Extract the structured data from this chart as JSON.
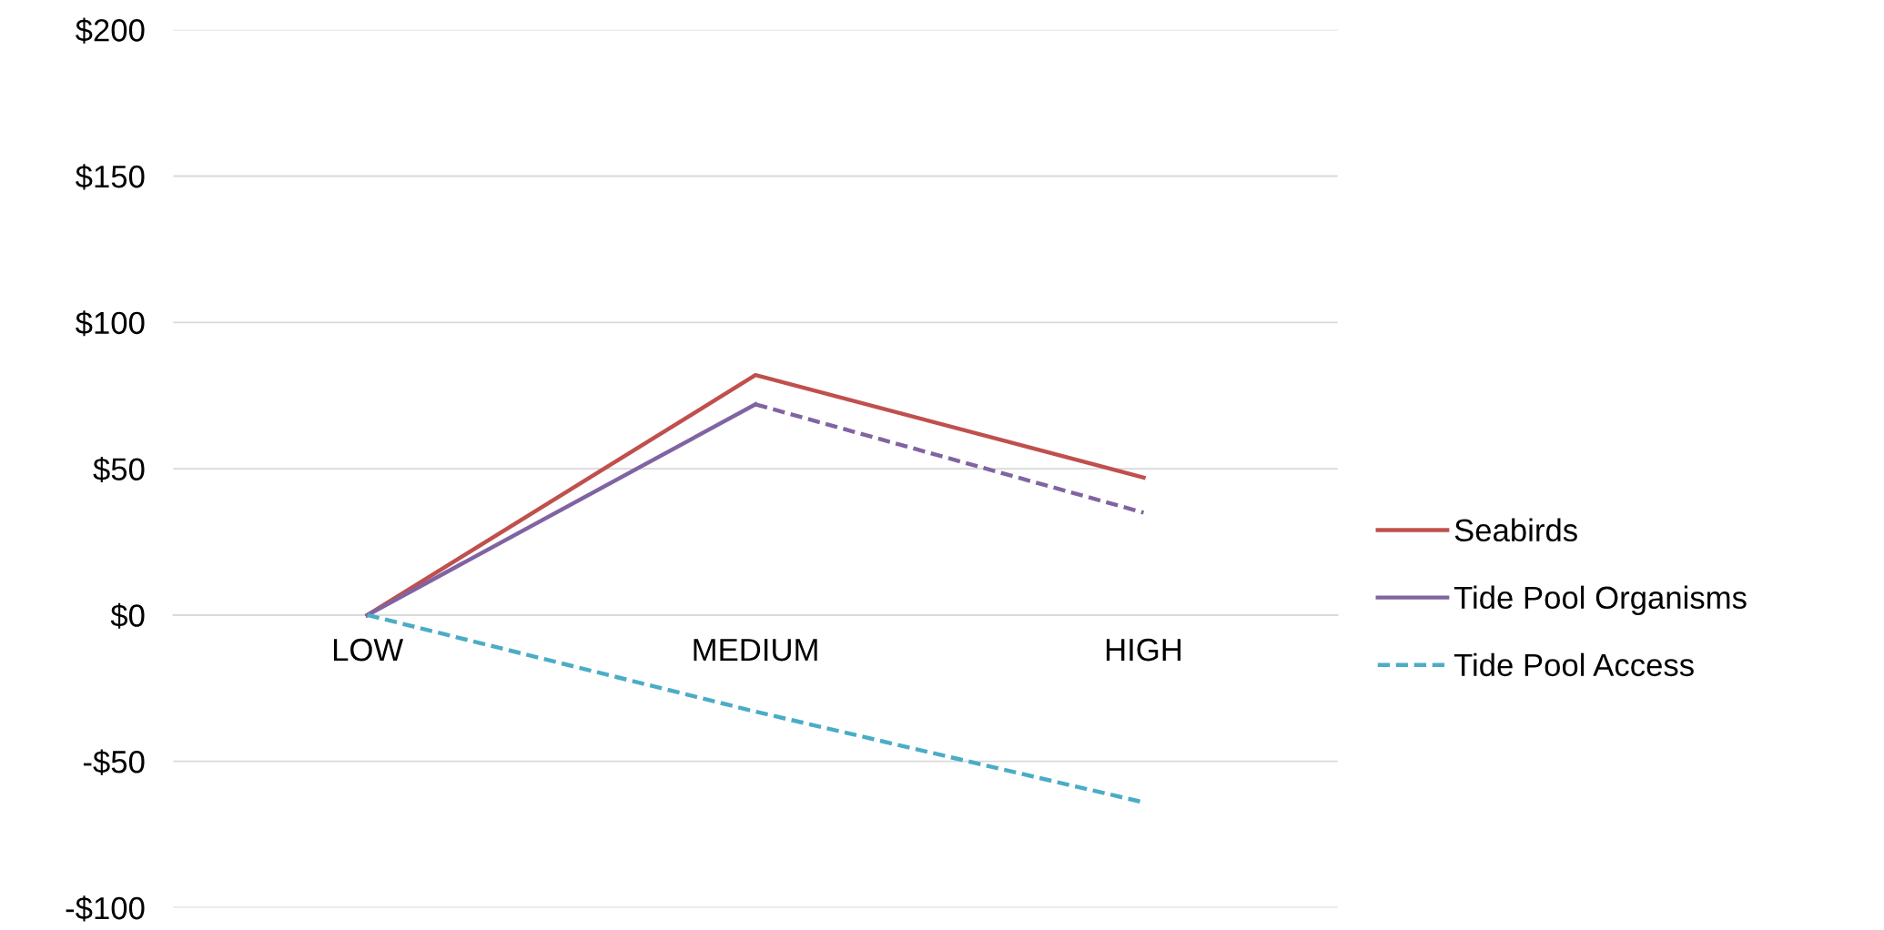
{
  "chart_data": {
    "type": "line",
    "categories": [
      "LOW",
      "MEDIUM",
      "HIGH"
    ],
    "series": [
      {
        "name": "Seabirds",
        "color": "#c0504d",
        "values": [
          0,
          82,
          47
        ],
        "line_style": "solid"
      },
      {
        "name": "Tide Pool Organisms",
        "color": "#8064a2",
        "values": [
          0,
          72,
          null
        ],
        "line_style": "solid"
      },
      {
        "color": "#8064a2",
        "values": [
          null,
          72,
          35
        ],
        "line_style": "dashed"
      },
      {
        "name": "Tide Pool Access",
        "color": "#4bacc6",
        "values": [
          0,
          -33,
          -64
        ],
        "line_style": "dashed"
      }
    ],
    "ylim": [
      -100,
      200
    ],
    "yticks": [
      {
        "value": -100,
        "label": "-$100"
      },
      {
        "value": -50,
        "label": "-$50"
      },
      {
        "value": 0,
        "label": "$0"
      },
      {
        "value": 50,
        "label": "$50"
      },
      {
        "value": 100,
        "label": "$100"
      },
      {
        "value": 150,
        "label": "$150"
      },
      {
        "value": 200,
        "label": "$200"
      }
    ],
    "grid": "y",
    "legend": "right",
    "marker": "none"
  }
}
